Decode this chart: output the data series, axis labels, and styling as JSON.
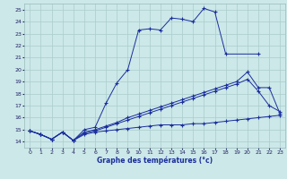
{
  "xlabel": "Graphe des températures (°c)",
  "bg_color": "#cce8e8",
  "grid_color": "#aacccc",
  "line_color": "#1a2e9e",
  "xlim": [
    -0.5,
    23.5
  ],
  "ylim": [
    13.5,
    25.5
  ],
  "xticks": [
    0,
    1,
    2,
    3,
    4,
    5,
    6,
    7,
    8,
    9,
    10,
    11,
    12,
    13,
    14,
    15,
    16,
    17,
    18,
    19,
    20,
    21,
    22,
    23
  ],
  "yticks": [
    14,
    15,
    16,
    17,
    18,
    19,
    20,
    21,
    22,
    23,
    24,
    25
  ],
  "series": [
    {
      "x": [
        0,
        1,
        2,
        3,
        4,
        5,
        6,
        7,
        8,
        9,
        10,
        11,
        12,
        13,
        14,
        15,
        16,
        17,
        18,
        21
      ],
      "y": [
        14.9,
        14.6,
        14.2,
        14.8,
        14.1,
        15.0,
        15.2,
        17.2,
        18.9,
        20.0,
        23.3,
        23.4,
        23.3,
        24.3,
        24.2,
        24.0,
        25.1,
        24.8,
        21.3,
        21.3
      ]
    },
    {
      "x": [
        0,
        1,
        2,
        3,
        4,
        5,
        6,
        7,
        8,
        9,
        10,
        11,
        12,
        13,
        14,
        15,
        16,
        17,
        18,
        19,
        20,
        21,
        22,
        23
      ],
      "y": [
        14.9,
        14.6,
        14.2,
        14.8,
        14.1,
        14.8,
        15.0,
        15.3,
        15.6,
        16.0,
        16.3,
        16.6,
        16.9,
        17.2,
        17.5,
        17.8,
        18.1,
        18.4,
        18.7,
        19.0,
        19.8,
        18.5,
        18.5,
        16.3
      ]
    },
    {
      "x": [
        0,
        1,
        2,
        3,
        4,
        5,
        6,
        7,
        8,
        9,
        10,
        11,
        12,
        13,
        14,
        15,
        16,
        17,
        18,
        19,
        20,
        21,
        22,
        23
      ],
      "y": [
        14.9,
        14.6,
        14.2,
        14.8,
        14.1,
        14.7,
        14.9,
        15.2,
        15.5,
        15.8,
        16.1,
        16.4,
        16.7,
        17.0,
        17.3,
        17.6,
        17.9,
        18.2,
        18.5,
        18.8,
        19.2,
        18.2,
        17.0,
        16.5
      ]
    },
    {
      "x": [
        0,
        1,
        2,
        3,
        4,
        5,
        6,
        7,
        8,
        9,
        10,
        11,
        12,
        13,
        14,
        15,
        16,
        17,
        18,
        19,
        20,
        21,
        22,
        23
      ],
      "y": [
        14.9,
        14.6,
        14.2,
        14.8,
        14.1,
        14.6,
        14.8,
        14.9,
        15.0,
        15.1,
        15.2,
        15.3,
        15.4,
        15.4,
        15.4,
        15.5,
        15.5,
        15.6,
        15.7,
        15.8,
        15.9,
        16.0,
        16.1,
        16.2
      ]
    }
  ]
}
